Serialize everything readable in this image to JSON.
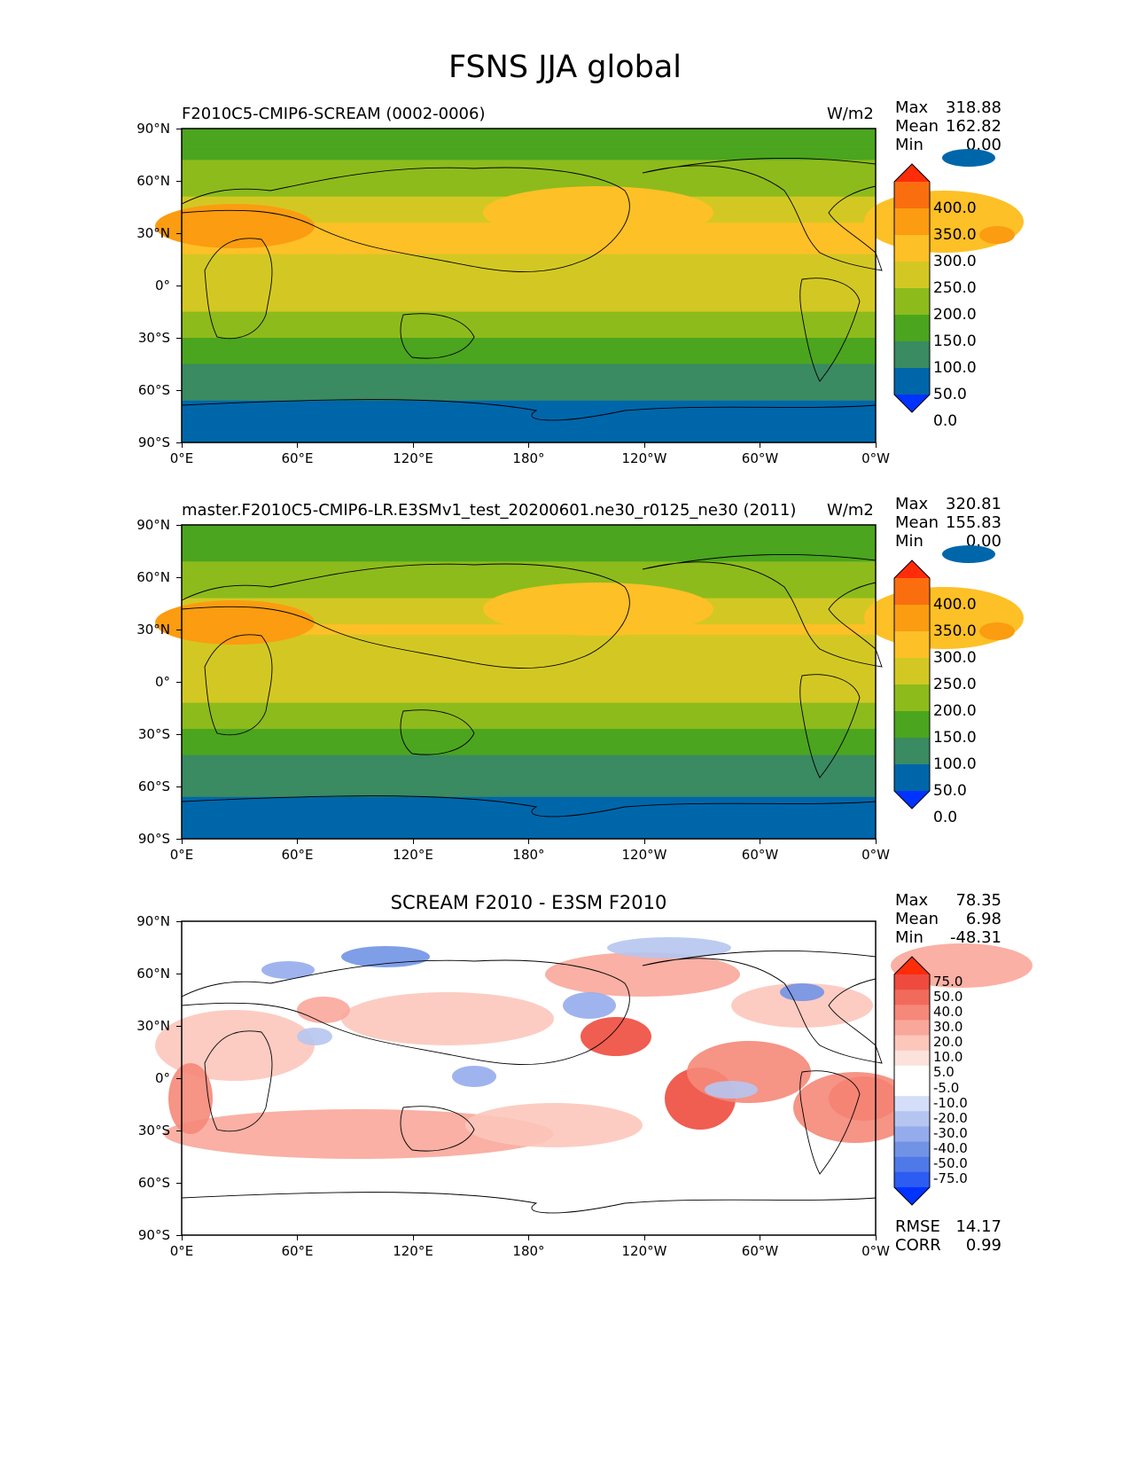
{
  "figure": {
    "title": "FSNS JJA global"
  },
  "colors": {
    "abs_levels": [
      "#0033ff",
      "#0066aa",
      "#3a8a62",
      "#4ba51e",
      "#8dbb1c",
      "#d3c823",
      "#fdc026",
      "#fb9c11",
      "#fa6e0f",
      "#ff2c0a"
    ],
    "diff_levels": [
      "#0033ff",
      "#2c5cf2",
      "#4f79e8",
      "#7193e6",
      "#95acec",
      "#b6c5f0",
      "#d5def8",
      "#ffffff",
      "#ffffff",
      "#fde2dc",
      "#fcc6bb",
      "#f9a79a",
      "#f58879",
      "#f16a5c",
      "#ee4b3e",
      "#ff2c0a"
    ]
  },
  "chart_data": [
    {
      "type": "heatmap",
      "title": "F2010C5-CMIP6-SCREAM (0002-0006)",
      "units": "W/m2",
      "stats": {
        "max_label": "Max",
        "max": "318.88",
        "mean_label": "Mean",
        "mean": "162.82",
        "min_label": "Min",
        "min": "0.00"
      },
      "x_ticks": [
        "0°E",
        "60°E",
        "120°E",
        "180°",
        "120°W",
        "60°W",
        "0°W"
      ],
      "y_ticks": [
        "90°N",
        "60°N",
        "30°N",
        "0°",
        "30°S",
        "60°S",
        "90°S"
      ],
      "xlim": [
        0,
        360
      ],
      "ylim": [
        -90,
        90
      ],
      "colorbar": [
        "400.0",
        "350.0",
        "300.0",
        "250.0",
        "200.0",
        "150.0",
        "100.0",
        "50.0",
        "0.0"
      ],
      "zonal_mean_by_lat": [
        [
          -90,
          0
        ],
        [
          -80,
          25
        ],
        [
          -60,
          60
        ],
        [
          -40,
          110
        ],
        [
          -25,
          170
        ],
        [
          -10,
          215
        ],
        [
          0,
          225
        ],
        [
          15,
          245
        ],
        [
          30,
          265
        ],
        [
          45,
          215
        ],
        [
          60,
          180
        ],
        [
          75,
          140
        ],
        [
          90,
          110
        ]
      ]
    },
    {
      "type": "heatmap",
      "title": "master.F2010C5-CMIP6-LR.E3SMv1_test_20200601.ne30_r0125_ne30 (2011)",
      "units": "W/m2",
      "stats": {
        "max_label": "Max",
        "max": "320.81",
        "mean_label": "Mean",
        "mean": "155.83",
        "min_label": "Min",
        "min": "0.00"
      },
      "x_ticks": [
        "0°E",
        "60°E",
        "120°E",
        "180°",
        "120°W",
        "60°W",
        "0°W"
      ],
      "y_ticks": [
        "90°N",
        "60°N",
        "30°N",
        "0°",
        "30°S",
        "60°S",
        "90°S"
      ],
      "xlim": [
        0,
        360
      ],
      "ylim": [
        -90,
        90
      ],
      "colorbar": [
        "400.0",
        "350.0",
        "300.0",
        "250.0",
        "200.0",
        "150.0",
        "100.0",
        "50.0",
        "0.0"
      ],
      "zonal_mean_by_lat": [
        [
          -90,
          0
        ],
        [
          -80,
          25
        ],
        [
          -60,
          60
        ],
        [
          -40,
          105
        ],
        [
          -25,
          160
        ],
        [
          -10,
          205
        ],
        [
          0,
          215
        ],
        [
          15,
          235
        ],
        [
          30,
          255
        ],
        [
          45,
          210
        ],
        [
          60,
          175
        ],
        [
          75,
          135
        ],
        [
          90,
          110
        ]
      ]
    },
    {
      "type": "heatmap",
      "title": "SCREAM F2010 - E3SM F2010",
      "units": "",
      "stats": {
        "max_label": "Max",
        "max": "78.35",
        "mean_label": "Mean",
        "mean": "6.98",
        "min_label": "Min",
        "min": "-48.31"
      },
      "extra_stats": {
        "rmse_label": "RMSE",
        "rmse": "14.17",
        "corr_label": "CORR",
        "corr": "0.99"
      },
      "x_ticks": [
        "0°E",
        "60°E",
        "120°E",
        "180°",
        "120°W",
        "60°W",
        "0°W"
      ],
      "y_ticks": [
        "90°N",
        "60°N",
        "30°N",
        "0°",
        "30°S",
        "60°S",
        "90°S"
      ],
      "xlim": [
        0,
        360
      ],
      "ylim": [
        -90,
        90
      ],
      "colorbar": [
        "75.0",
        "50.0",
        "40.0",
        "30.0",
        "20.0",
        "10.0",
        "5.0",
        "-5.0",
        "-10.0",
        "-20.0",
        "-30.0",
        "-40.0",
        "-50.0",
        "-75.0"
      ]
    }
  ]
}
